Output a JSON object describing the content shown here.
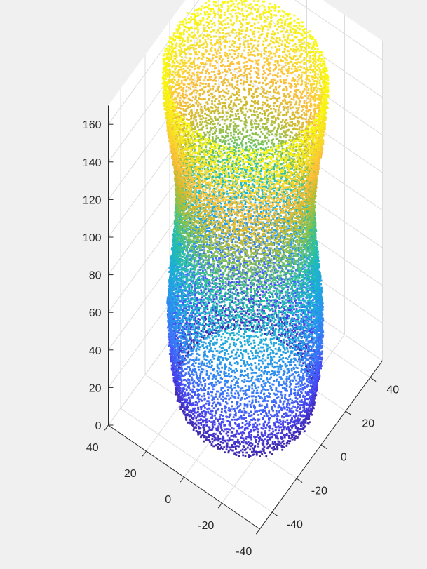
{
  "chart_data": {
    "type": "scatter",
    "view": "3d",
    "title": "",
    "xlabel": "",
    "ylabel": "",
    "zlabel": "",
    "xlim": [
      -40,
      40
    ],
    "ylim": [
      -50,
      50
    ],
    "zlim": [
      0,
      170
    ],
    "grid": true,
    "colormap": "parula",
    "colormap_colors": [
      "#3e26a8",
      "#4743f0",
      "#3e71fa",
      "#2797eb",
      "#1ab2d3",
      "#2bc09f",
      "#81c153",
      "#d0ba2d",
      "#fdbf3b",
      "#f6e222",
      "#f9fb0e"
    ],
    "background_color": "#f0f0f0",
    "axes_color": "#ffffff",
    "x_ticks": [
      -40,
      -20,
      0,
      20,
      40
    ],
    "y_ticks": [
      -40,
      -20,
      0,
      20,
      40
    ],
    "z_ticks": [
      0,
      20,
      40,
      60,
      80,
      100,
      120,
      140,
      160
    ],
    "x_tick_labels": [
      "-40",
      "-20",
      "0",
      "20",
      "40"
    ],
    "y_tick_labels": [
      "-40",
      "-20",
      "0",
      "20",
      "40"
    ],
    "z_tick_labels": [
      "0",
      "20",
      "40",
      "60",
      "80",
      "100",
      "120",
      "140",
      "160"
    ],
    "surface": {
      "shape": "hollow cylinder point cloud",
      "height_range": [
        0,
        170
      ],
      "profile": [
        {
          "z": 0,
          "radius": 30
        },
        {
          "z": 20,
          "radius": 33
        },
        {
          "z": 40,
          "radius": 34
        },
        {
          "z": 60,
          "radius": 33
        },
        {
          "z": 80,
          "radius": 31
        },
        {
          "z": 100,
          "radius": 30
        },
        {
          "z": 120,
          "radius": 31
        },
        {
          "z": 140,
          "radius": 34
        },
        {
          "z": 160,
          "radius": 36
        },
        {
          "z": 170,
          "radius": 36
        }
      ]
    }
  }
}
